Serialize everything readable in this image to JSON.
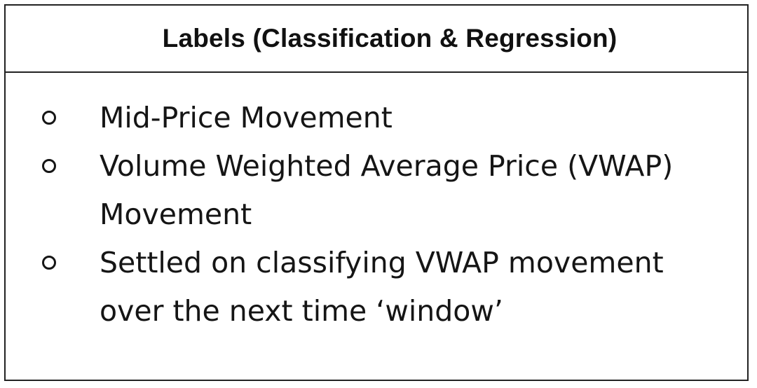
{
  "header": {
    "title": "Labels (Classification & Regression)"
  },
  "body": {
    "items": [
      {
        "text": "Mid-Price Movement"
      },
      {
        "text": "Volume Weighted Average Price (VWAP) Movement"
      },
      {
        "text": "Settled on classifying VWAP movement over the next time ‘window’"
      }
    ]
  },
  "icons": {
    "bullet": "hollow-circle-bullet-icon"
  }
}
